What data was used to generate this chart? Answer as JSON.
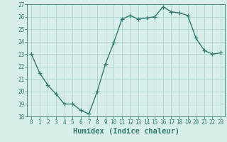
{
  "x": [
    0,
    1,
    2,
    3,
    4,
    5,
    6,
    7,
    8,
    9,
    10,
    11,
    12,
    13,
    14,
    15,
    16,
    17,
    18,
    19,
    20,
    21,
    22,
    23
  ],
  "y": [
    23,
    21.5,
    20.5,
    19.8,
    19.0,
    19.0,
    18.5,
    18.2,
    20.0,
    22.2,
    23.9,
    25.8,
    26.1,
    25.8,
    25.9,
    26.0,
    26.8,
    26.4,
    26.3,
    26.1,
    24.3,
    23.3,
    23.0,
    23.1
  ],
  "line_color": "#2e7d6e",
  "marker": "+",
  "markersize": 4,
  "linewidth": 1.0,
  "bg_color": "#d8eeeb",
  "grid_color": "#aed4ce",
  "xlabel": "Humidex (Indice chaleur)",
  "xlim": [
    -0.5,
    23.5
  ],
  "ylim": [
    18,
    27
  ],
  "yticks": [
    18,
    19,
    20,
    21,
    22,
    23,
    24,
    25,
    26,
    27
  ],
  "xticks": [
    0,
    1,
    2,
    3,
    4,
    5,
    6,
    7,
    8,
    9,
    10,
    11,
    12,
    13,
    14,
    15,
    16,
    17,
    18,
    19,
    20,
    21,
    22,
    23
  ],
  "tick_color": "#2e7d6e",
  "tick_labelsize": 5.5,
  "xlabel_fontsize": 7.5
}
